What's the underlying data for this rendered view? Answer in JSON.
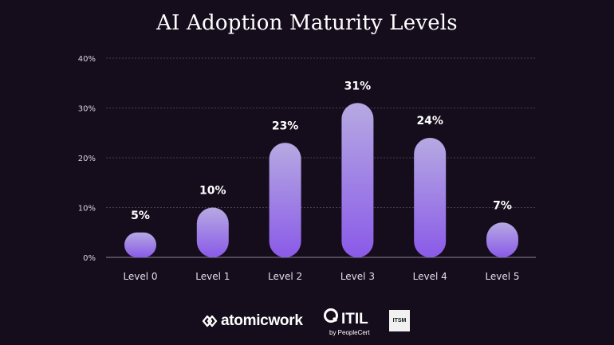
{
  "chart_data": {
    "type": "bar",
    "title": "AI Adoption Maturity Levels",
    "categories": [
      "Level 0",
      "Level 1",
      "Level 2",
      "Level 3",
      "Level 4",
      "Level 5"
    ],
    "values": [
      5,
      10,
      23,
      31,
      24,
      7
    ],
    "value_labels": [
      "5%",
      "10%",
      "23%",
      "31%",
      "24%",
      "7%"
    ],
    "y_ticks": [
      "0%",
      "10%",
      "20%",
      "30%",
      "40%"
    ],
    "ylim": [
      0,
      40
    ],
    "grid": true,
    "legend": "none",
    "colors": {
      "bar_top": "#b6a9e2",
      "bar_bottom": "#8a5ae8",
      "background": "#150d1c"
    }
  },
  "footer": {
    "atomicwork": "atomicwork",
    "itil": "ITIL",
    "itil_sub": "by PeopleCert",
    "itsm": "ITSM"
  }
}
